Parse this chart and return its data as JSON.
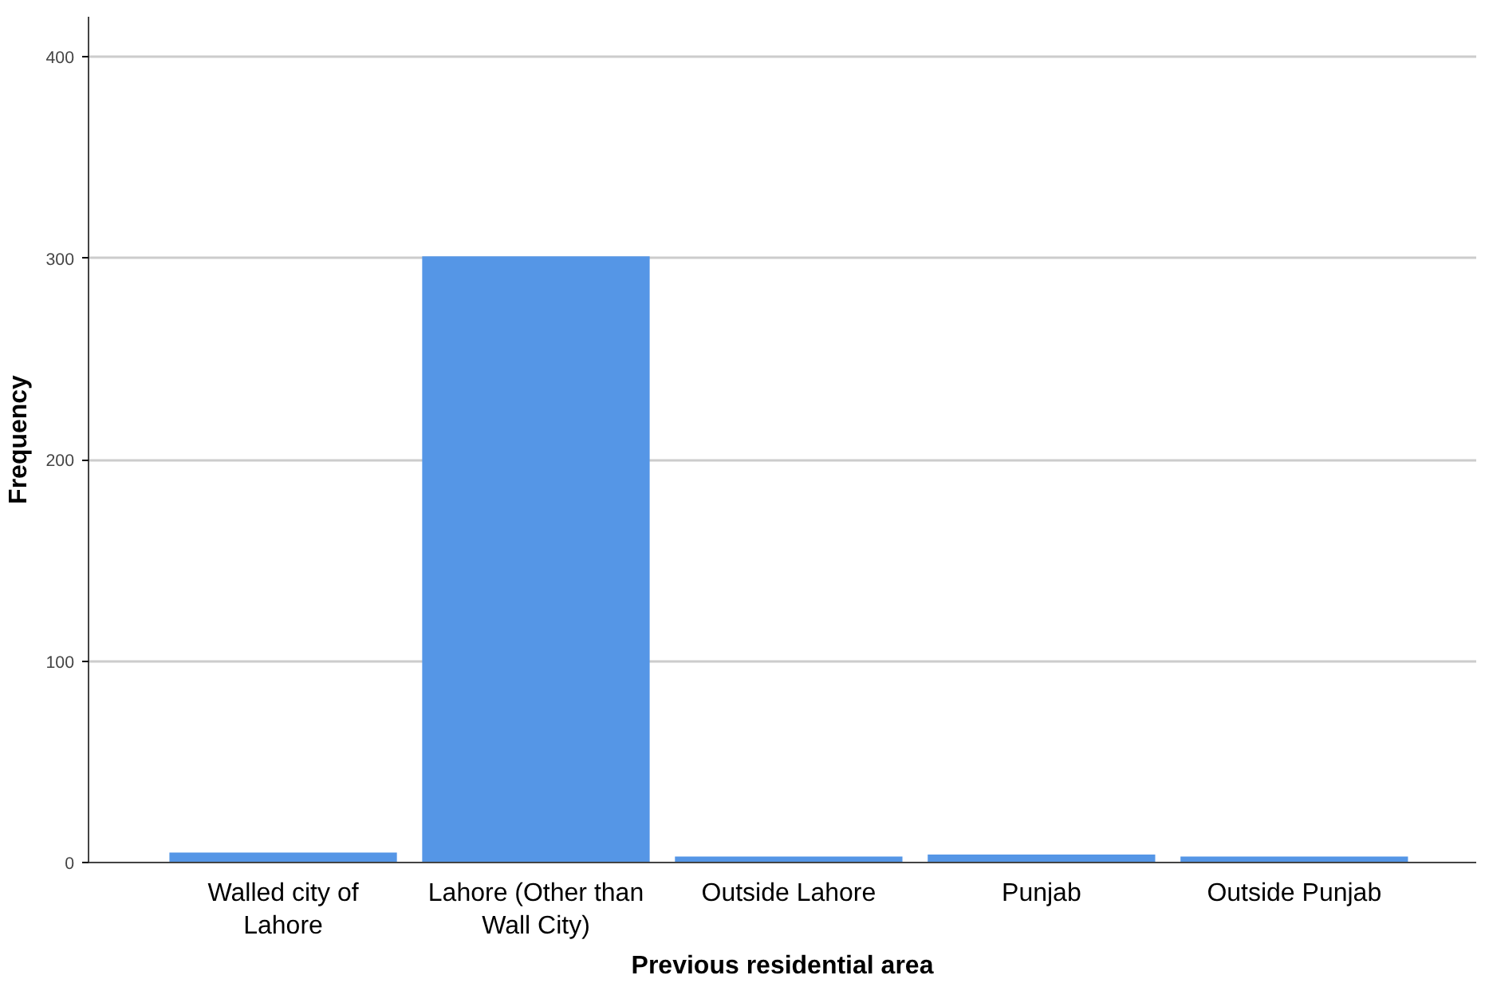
{
  "chart_data": {
    "type": "bar",
    "xlabel": "Previous residential area",
    "ylabel": "Frequency",
    "categories": [
      "Walled city of Lahore",
      "Lahore (Other than Wall City)",
      "Outside Lahore",
      "Punjab",
      "Outside Punjab"
    ],
    "values": [
      5,
      301,
      3,
      4,
      3
    ],
    "color": "#5596e6",
    "ylim": [
      0,
      420
    ],
    "yticks": [
      0,
      100,
      200,
      300,
      400
    ],
    "grid": "y"
  }
}
